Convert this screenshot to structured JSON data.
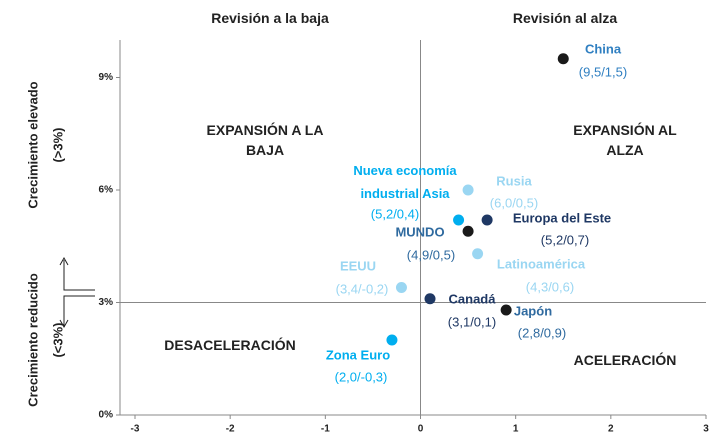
{
  "chart_data": {
    "type": "scatter",
    "headers": [
      "Revisión a la baja",
      "Revisión al alza"
    ],
    "y_labels": [
      "Crecimiento elevado",
      "(>3%)",
      "Crecimiento reducido",
      "(<3%)"
    ],
    "quadrants": [
      "EXPANSIÓN A LA BAJA",
      "EXPANSIÓN AL ALZA",
      "DESACELERACIÓN",
      "ACELERACIÓN"
    ],
    "xlim": [
      -3,
      3
    ],
    "xticks": [
      -3,
      -2,
      -1,
      0,
      1,
      2,
      3
    ],
    "ylim": [
      0,
      10
    ],
    "yticks": [
      {
        "value": 0,
        "label": "0%"
      },
      {
        "value": 3,
        "label": "3%"
      },
      {
        "value": 6,
        "label": "6%"
      },
      {
        "value": 9,
        "label": "9%"
      }
    ],
    "series": [
      {
        "name": "China",
        "color": "#1a1a1a",
        "label_color": "#2f7fc1",
        "x": [
          1.5
        ],
        "values": [
          9.5
        ],
        "value_labels": [
          "(9,5/1,5)"
        ]
      },
      {
        "name": "Rusia",
        "color": "#9ad6f2",
        "label_color": "#9ad6f2",
        "x": [
          0.5
        ],
        "values": [
          6.0
        ],
        "value_labels": [
          "(6,0/0,5)"
        ]
      },
      {
        "name": "Nueva economía industrial Asia",
        "color": "#00aeef",
        "label_color": "#00aeef",
        "x": [
          0.4
        ],
        "values": [
          5.2
        ],
        "value_labels": [
          "(5,2/0,4)"
        ]
      },
      {
        "name": "Europa del Este",
        "color": "#1f3864",
        "label_color": "#1f3864",
        "x": [
          0.7
        ],
        "values": [
          5.2
        ],
        "value_labels": [
          "(5,2/0,7)"
        ]
      },
      {
        "name": "MUNDO",
        "color": "#1a1a1a",
        "label_color": "#2f6a9f",
        "x": [
          0.5
        ],
        "values": [
          4.9
        ],
        "value_labels": [
          "(4,9/0,5)"
        ]
      },
      {
        "name": "Latinoamérica",
        "color": "#9ad6f2",
        "label_color": "#9ad6f2",
        "x": [
          0.6
        ],
        "values": [
          4.3
        ],
        "value_labels": [
          "(4,3/0,6)"
        ]
      },
      {
        "name": "EEUU",
        "color": "#9ad6f2",
        "label_color": "#9ad6f2",
        "x": [
          -0.2
        ],
        "values": [
          3.4
        ],
        "value_labels": [
          "(3,4/-0,2)"
        ]
      },
      {
        "name": "Canadá",
        "color": "#1f3864",
        "label_color": "#1f3864",
        "x": [
          0.1
        ],
        "values": [
          3.1
        ],
        "value_labels": [
          "(3,1/0,1)"
        ]
      },
      {
        "name": "Japón",
        "color": "#1a1a1a",
        "label_color": "#2f6a9f",
        "x": [
          0.9
        ],
        "values": [
          2.8
        ],
        "value_labels": [
          "(2,8/0,9)"
        ]
      },
      {
        "name": "Zona Euro",
        "color": "#00aeef",
        "label_color": "#00aeef",
        "x": [
          -0.3
        ],
        "values": [
          2.0
        ],
        "value_labels": [
          "(2,0/-0,3)"
        ]
      }
    ]
  }
}
